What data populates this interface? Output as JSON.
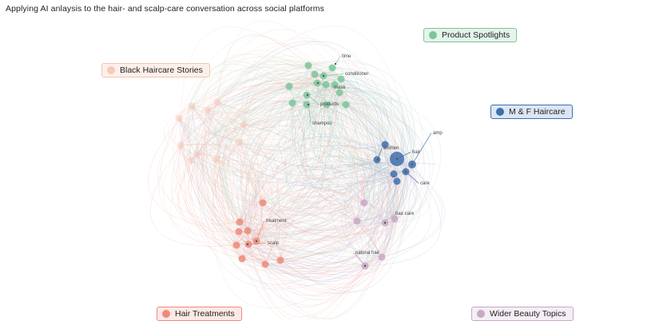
{
  "title": "Applying AI anlaysis to the hair- and scalp-care conversation across social platforms",
  "clusters": [
    {
      "key": "product",
      "name": "Product Spotlights",
      "color": "#7cc49a",
      "fill": "#e6f4ea",
      "stroke": "#7cc49a"
    },
    {
      "key": "black",
      "name": "Black Haircare Stories",
      "color": "#f7c9b8",
      "fill": "#fdf0ea",
      "stroke": "#f5c4b3"
    },
    {
      "key": "mf",
      "name": "M & F Haircare",
      "color": "#3f6fae",
      "fill": "#dce6f3",
      "stroke": "#3f6fae"
    },
    {
      "key": "treat",
      "name": "Hair Treatments",
      "color": "#ef8a7d",
      "fill": "#fde9e5",
      "stroke": "#ef8a7d"
    },
    {
      "key": "wider",
      "name": "Wider Beauty Topics",
      "color": "#c7a9c7",
      "fill": "#f5eef5",
      "stroke": "#c7a9c7"
    }
  ],
  "keywords": [
    {
      "cluster": "product",
      "label": "time"
    },
    {
      "cluster": "product",
      "label": "conditioner"
    },
    {
      "cluster": "product",
      "label": "mask"
    },
    {
      "cluster": "product",
      "label": "products"
    },
    {
      "cluster": "product",
      "label": "shampoo"
    },
    {
      "cluster": "mf",
      "label": "amp"
    },
    {
      "cluster": "mf",
      "label": "women"
    },
    {
      "cluster": "mf",
      "label": "hair"
    },
    {
      "cluster": "mf",
      "label": "care"
    },
    {
      "cluster": "treat",
      "label": "treatment"
    },
    {
      "cluster": "treat",
      "label": "scalp"
    },
    {
      "cluster": "wider",
      "label": "hair care"
    },
    {
      "cluster": "wider",
      "label": "natural hair"
    }
  ]
}
